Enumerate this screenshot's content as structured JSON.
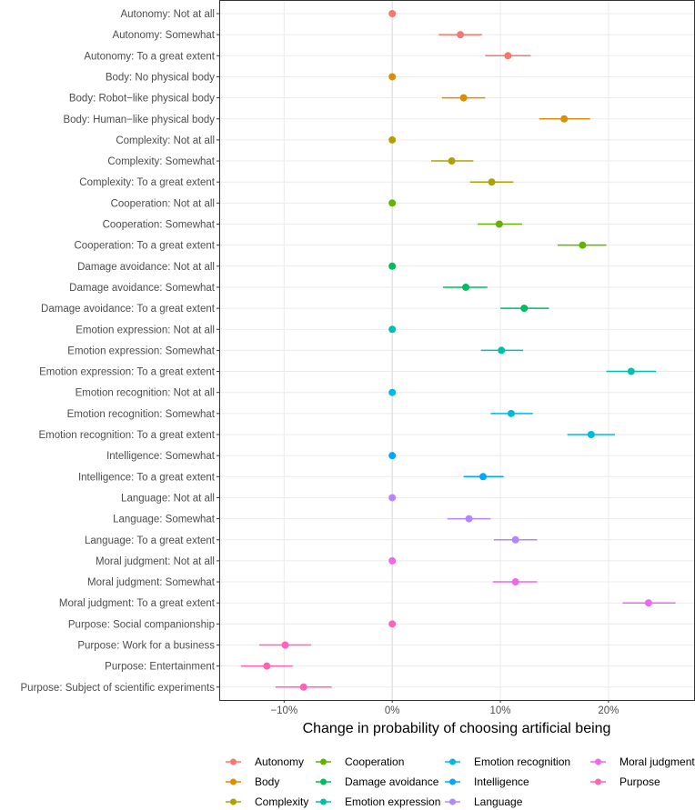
{
  "chart_data": {
    "type": "scatter",
    "subtype": "dot-and-whisker",
    "title": "",
    "xlabel": "Change in probability of choosing artificial being",
    "ylabel": "",
    "xlim": [
      -0.16,
      0.28
    ],
    "x_ticks": [
      {
        "value": -0.1,
        "label": "−10%"
      },
      {
        "value": 0.0,
        "label": "0%"
      },
      {
        "value": 0.1,
        "label": "10%"
      },
      {
        "value": 0.2,
        "label": "20%"
      }
    ],
    "grid": true,
    "reference_line_x": 0,
    "legend_position": "bottom",
    "series": [
      {
        "name": "Autonomy",
        "color": "#F8766D"
      },
      {
        "name": "Body",
        "color": "#DB8E00"
      },
      {
        "name": "Complexity",
        "color": "#AEA200"
      },
      {
        "name": "Cooperation",
        "color": "#64B200"
      },
      {
        "name": "Damage avoidance",
        "color": "#00BD5C"
      },
      {
        "name": "Emotion expression",
        "color": "#00C1A7"
      },
      {
        "name": "Emotion recognition",
        "color": "#00BADE"
      },
      {
        "name": "Intelligence",
        "color": "#00A6FF"
      },
      {
        "name": "Language",
        "color": "#B385FF"
      },
      {
        "name": "Moral judgment",
        "color": "#EF67EB"
      },
      {
        "name": "Purpose",
        "color": "#FF63B6"
      }
    ],
    "points": [
      {
        "label": "Autonomy: Not at all",
        "series": "Autonomy",
        "estimate": 0.0,
        "lower": 0.0,
        "upper": 0.0
      },
      {
        "label": "Autonomy: Somewhat",
        "series": "Autonomy",
        "estimate": 0.063,
        "lower": 0.043,
        "upper": 0.083
      },
      {
        "label": "Autonomy: To a great extent",
        "series": "Autonomy",
        "estimate": 0.107,
        "lower": 0.086,
        "upper": 0.128
      },
      {
        "label": "Body: No physical body",
        "series": "Body",
        "estimate": 0.0,
        "lower": 0.0,
        "upper": 0.0
      },
      {
        "label": "Body: Robot−like physical body",
        "series": "Body",
        "estimate": 0.066,
        "lower": 0.046,
        "upper": 0.086
      },
      {
        "label": "Body: Human−like physical body",
        "series": "Body",
        "estimate": 0.159,
        "lower": 0.136,
        "upper": 0.183
      },
      {
        "label": "Complexity: Not at all",
        "series": "Complexity",
        "estimate": 0.0,
        "lower": 0.0,
        "upper": 0.0
      },
      {
        "label": "Complexity: Somewhat",
        "series": "Complexity",
        "estimate": 0.055,
        "lower": 0.036,
        "upper": 0.075
      },
      {
        "label": "Complexity: To a great extent",
        "series": "Complexity",
        "estimate": 0.092,
        "lower": 0.072,
        "upper": 0.112
      },
      {
        "label": "Cooperation: Not at all",
        "series": "Cooperation",
        "estimate": 0.0,
        "lower": 0.0,
        "upper": 0.0
      },
      {
        "label": "Cooperation: Somewhat",
        "series": "Cooperation",
        "estimate": 0.099,
        "lower": 0.079,
        "upper": 0.12
      },
      {
        "label": "Cooperation: To a great extent",
        "series": "Cooperation",
        "estimate": 0.176,
        "lower": 0.153,
        "upper": 0.198
      },
      {
        "label": "Damage avoidance: Not at all",
        "series": "Damage avoidance",
        "estimate": 0.0,
        "lower": 0.0,
        "upper": 0.0
      },
      {
        "label": "Damage avoidance: Somewhat",
        "series": "Damage avoidance",
        "estimate": 0.068,
        "lower": 0.047,
        "upper": 0.088
      },
      {
        "label": "Damage avoidance: To a great extent",
        "series": "Damage avoidance",
        "estimate": 0.122,
        "lower": 0.1,
        "upper": 0.145
      },
      {
        "label": "Emotion expression: Not at all",
        "series": "Emotion expression",
        "estimate": 0.0,
        "lower": 0.0,
        "upper": 0.0
      },
      {
        "label": "Emotion expression: Somewhat",
        "series": "Emotion expression",
        "estimate": 0.101,
        "lower": 0.082,
        "upper": 0.121
      },
      {
        "label": "Emotion expression: To a great extent",
        "series": "Emotion expression",
        "estimate": 0.221,
        "lower": 0.198,
        "upper": 0.244
      },
      {
        "label": "Emotion recognition: Not at all",
        "series": "Emotion recognition",
        "estimate": 0.0,
        "lower": 0.0,
        "upper": 0.0
      },
      {
        "label": "Emotion recognition: Somewhat",
        "series": "Emotion recognition",
        "estimate": 0.11,
        "lower": 0.091,
        "upper": 0.13
      },
      {
        "label": "Emotion recognition: To a great extent",
        "series": "Emotion recognition",
        "estimate": 0.184,
        "lower": 0.162,
        "upper": 0.206
      },
      {
        "label": "Intelligence: Somewhat",
        "series": "Intelligence",
        "estimate": 0.0,
        "lower": 0.0,
        "upper": 0.0
      },
      {
        "label": "Intelligence: To a great extent",
        "series": "Intelligence",
        "estimate": 0.084,
        "lower": 0.066,
        "upper": 0.103
      },
      {
        "label": "Language: Not at all",
        "series": "Language",
        "estimate": 0.0,
        "lower": 0.0,
        "upper": 0.0
      },
      {
        "label": "Language: Somewhat",
        "series": "Language",
        "estimate": 0.071,
        "lower": 0.051,
        "upper": 0.091
      },
      {
        "label": "Language: To a great extent",
        "series": "Language",
        "estimate": 0.114,
        "lower": 0.094,
        "upper": 0.134
      },
      {
        "label": "Moral judgment: Not at all",
        "series": "Moral judgment",
        "estimate": 0.0,
        "lower": 0.0,
        "upper": 0.0
      },
      {
        "label": "Moral judgment: Somewhat",
        "series": "Moral judgment",
        "estimate": 0.114,
        "lower": 0.093,
        "upper": 0.134
      },
      {
        "label": "Moral judgment: To a great extent",
        "series": "Moral judgment",
        "estimate": 0.237,
        "lower": 0.213,
        "upper": 0.262
      },
      {
        "label": "Purpose: Social companionship",
        "series": "Purpose",
        "estimate": 0.0,
        "lower": 0.0,
        "upper": 0.0
      },
      {
        "label": "Purpose: Work for a business",
        "series": "Purpose",
        "estimate": -0.099,
        "lower": -0.123,
        "upper": -0.075
      },
      {
        "label": "Purpose: Entertainment",
        "series": "Purpose",
        "estimate": -0.116,
        "lower": -0.14,
        "upper": -0.092
      },
      {
        "label": "Purpose: Subject of scientific experiments",
        "series": "Purpose",
        "estimate": -0.082,
        "lower": -0.108,
        "upper": -0.056
      }
    ]
  }
}
